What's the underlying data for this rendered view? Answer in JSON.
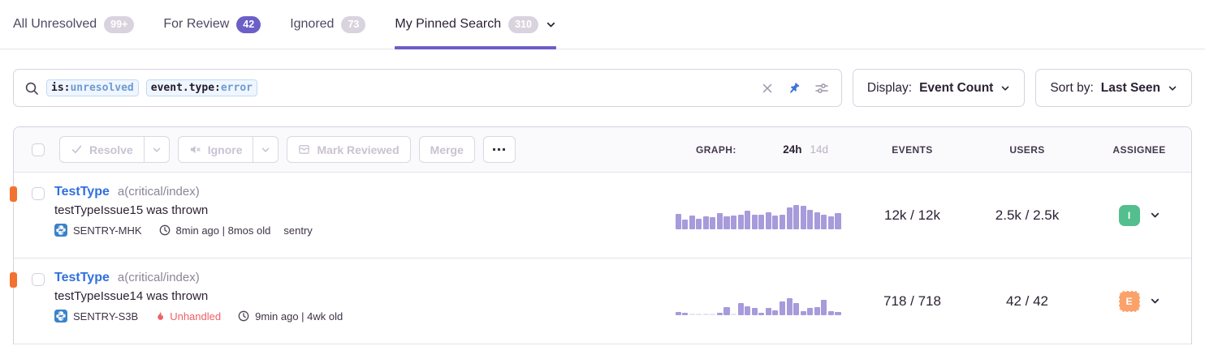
{
  "tabs": [
    {
      "label": "All Unresolved",
      "badge": "99+",
      "badge_style": "light",
      "active": false
    },
    {
      "label": "For Review",
      "badge": "42",
      "badge_style": "purple",
      "active": false
    },
    {
      "label": "Ignored",
      "badge": "73",
      "badge_style": "light",
      "active": false
    },
    {
      "label": "My Pinned Search",
      "badge": "310",
      "badge_style": "light",
      "active": true
    }
  ],
  "search": {
    "tokens": [
      {
        "key": "is:",
        "value": "unresolved"
      },
      {
        "key": "event.type:",
        "value": "error"
      }
    ]
  },
  "display_button": {
    "label": "Display:",
    "value": "Event Count"
  },
  "sort_button": {
    "label": "Sort by:",
    "value": "Last Seen"
  },
  "toolbar": {
    "resolve_label": "Resolve",
    "ignore_label": "Ignore",
    "mark_reviewed_label": "Mark Reviewed",
    "merge_label": "Merge"
  },
  "list_header": {
    "graph_label": "GRAPH:",
    "range_24h": "24h",
    "range_14d": "14d",
    "events_label": "EVENTS",
    "users_label": "USERS",
    "assignee_label": "ASSIGNEE"
  },
  "issues": [
    {
      "title": "TestType",
      "subtitle": "a(critical/index)",
      "message": "testTypeIssue15 was thrown",
      "short_id": "SENTRY-MHK",
      "unhandled_label": "",
      "age": "8min ago | 8mos old",
      "project": "sentry",
      "events": "12k / 12k",
      "users": "2.5k / 2.5k",
      "assignee_initial": "I",
      "assignee_color": "#53BE8E",
      "sparkline": [
        55,
        35,
        50,
        37,
        47,
        43,
        58,
        47,
        50,
        52,
        67,
        53,
        52,
        63,
        50,
        53,
        80,
        88,
        85,
        70,
        63,
        53,
        48,
        58
      ]
    },
    {
      "title": "TestType",
      "subtitle": "a(critical/index)",
      "message": "testTypeIssue14 was thrown",
      "short_id": "SENTRY-S3B",
      "unhandled_label": "Unhandled",
      "age": "9min ago | 4wk old",
      "project": "",
      "events": "718 / 718",
      "users": "42 / 42",
      "assignee_initial": "E",
      "assignee_color": "#FBA26B",
      "sparkline": [
        12,
        9,
        2,
        2,
        2,
        2,
        9,
        28,
        3,
        45,
        32,
        25,
        10,
        26,
        18,
        50,
        62,
        45,
        15,
        26,
        28,
        55,
        16,
        13
      ]
    }
  ],
  "icons": {
    "search": "magnifier",
    "clear": "x",
    "pin": "thumbtack (active, blue)",
    "filters": "sliders",
    "resolve": "checkmark",
    "ignore": "muted-speaker",
    "mark_reviewed": "archive-box",
    "more": "ellipsis",
    "platform": "python",
    "clock": "clock",
    "fire": "flame",
    "chevron": "chevron-down"
  },
  "colors": {
    "accent_purple": "#6C5FC7",
    "link_blue": "#3070DF",
    "level_orange": "#F2732F",
    "error_red": "#EE6066",
    "spark_purple": "#A79BDB",
    "avatar_green": "#53BE8E",
    "avatar_orange": "#FBA26B"
  }
}
